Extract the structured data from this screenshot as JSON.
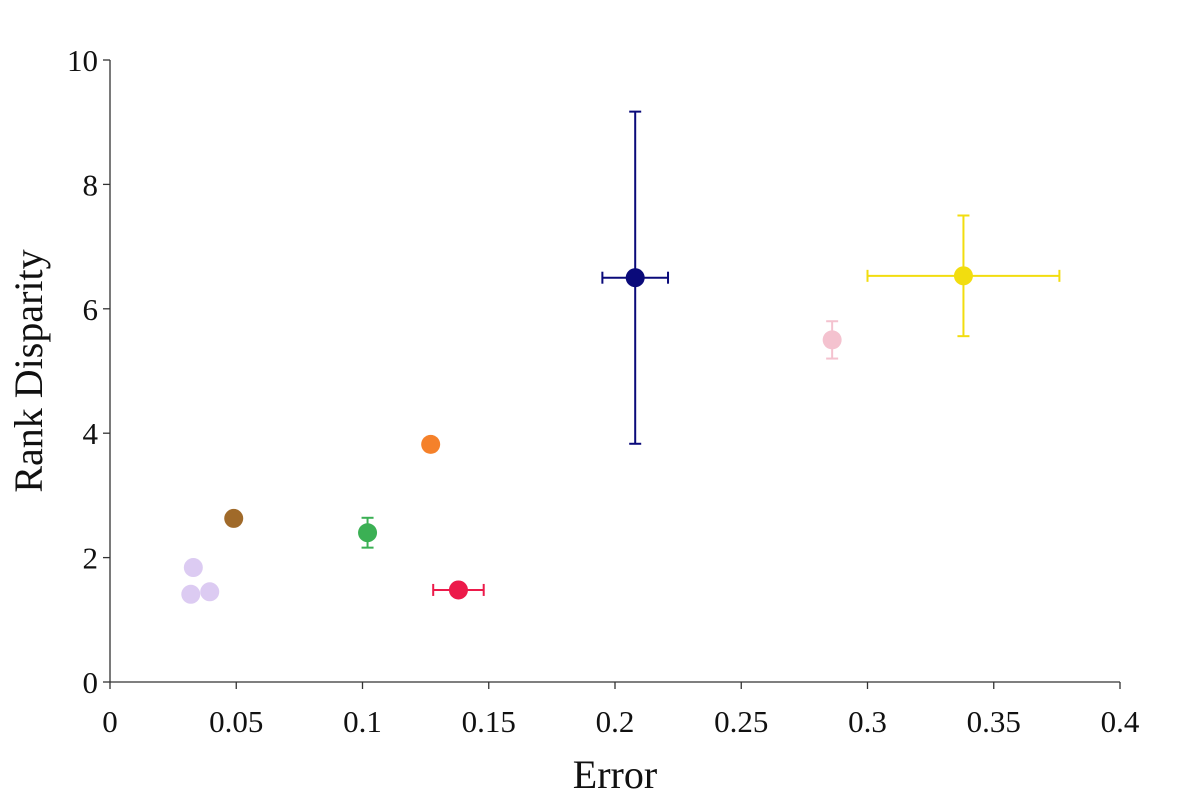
{
  "chart_data": {
    "type": "scatter",
    "title": "",
    "xlabel": "Error",
    "ylabel": "Rank Disparity",
    "xlim": [
      0,
      0.4
    ],
    "ylim": [
      0,
      10
    ],
    "xticks": [
      0,
      0.05,
      0.1,
      0.15,
      0.2,
      0.25,
      0.3,
      0.35,
      0.4
    ],
    "xtick_labels": [
      "0",
      "0.05",
      "0.1",
      "0.15",
      "0.2",
      "0.25",
      "0.3",
      "0.35",
      "0.4"
    ],
    "yticks": [
      0,
      2,
      4,
      6,
      8,
      10
    ],
    "ytick_labels": [
      "0",
      "2",
      "4",
      "6",
      "8",
      "10"
    ],
    "grid": false,
    "points": [
      {
        "x": 0.208,
        "y": 6.5,
        "x_err": 0.013,
        "y_err": 2.67,
        "color": "#0a0a7a"
      },
      {
        "x": 0.338,
        "y": 6.53,
        "x_err": 0.038,
        "y_err": 0.97,
        "color": "#f2dd0f"
      },
      {
        "x": 0.286,
        "y": 5.5,
        "x_err": 0.0,
        "y_err": 0.3,
        "color": "#f4c2cf"
      },
      {
        "x": 0.127,
        "y": 3.82,
        "x_err": 0.0,
        "y_err": 0.0,
        "color": "#f5812a"
      },
      {
        "x": 0.049,
        "y": 2.63,
        "x_err": 0.0,
        "y_err": 0.0,
        "color": "#a06a2a"
      },
      {
        "x": 0.102,
        "y": 2.4,
        "x_err": 0.0,
        "y_err": 0.24,
        "color": "#3bb054"
      },
      {
        "x": 0.138,
        "y": 1.48,
        "x_err": 0.01,
        "y_err": 0.0,
        "color": "#ec1a4a"
      },
      {
        "x": 0.033,
        "y": 1.84,
        "x_err": 0.0,
        "y_err": 0.0,
        "color": "#dccbf2"
      },
      {
        "x": 0.032,
        "y": 1.41,
        "x_err": 0.0,
        "y_err": 0.0,
        "color": "#dccbf2"
      },
      {
        "x": 0.0395,
        "y": 1.45,
        "x_err": 0.0,
        "y_err": 0.0,
        "color": "#dccbf2"
      }
    ]
  }
}
